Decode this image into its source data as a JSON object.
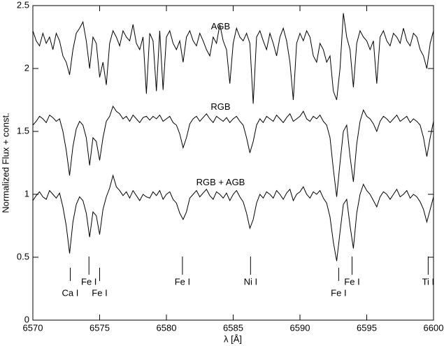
{
  "chart_data": {
    "type": "line",
    "xlabel": "λ [Å]",
    "ylabel": "Normalized Flux + const.",
    "x": [
      6570,
      6570.25,
      6570.5,
      6570.75,
      6571,
      6571.25,
      6571.5,
      6571.75,
      6572,
      6572.25,
      6572.5,
      6572.75,
      6573,
      6573.25,
      6573.5,
      6573.75,
      6574,
      6574.25,
      6574.5,
      6574.75,
      6575,
      6575.25,
      6575.5,
      6575.75,
      6576,
      6576.25,
      6576.5,
      6576.75,
      6577,
      6577.25,
      6577.5,
      6577.75,
      6578,
      6578.25,
      6578.5,
      6578.75,
      6579,
      6579.25,
      6579.5,
      6579.75,
      6580,
      6580.25,
      6580.5,
      6580.75,
      6581,
      6581.25,
      6581.5,
      6581.75,
      6582,
      6582.25,
      6582.5,
      6582.75,
      6583,
      6583.25,
      6583.5,
      6583.75,
      6584,
      6584.25,
      6584.5,
      6584.75,
      6585,
      6585.25,
      6585.5,
      6585.75,
      6586,
      6586.25,
      6586.5,
      6586.75,
      6587,
      6587.25,
      6587.5,
      6587.75,
      6588,
      6588.25,
      6588.5,
      6588.75,
      6589,
      6589.25,
      6589.5,
      6589.75,
      6590,
      6590.25,
      6590.5,
      6590.75,
      6591,
      6591.25,
      6591.5,
      6591.75,
      6592,
      6592.25,
      6592.5,
      6592.75,
      6593,
      6593.25,
      6593.5,
      6593.75,
      6594,
      6594.25,
      6594.5,
      6594.75,
      6595,
      6595.25,
      6595.5,
      6595.75,
      6596,
      6596.25,
      6596.5,
      6596.75,
      6597,
      6597.25,
      6597.5,
      6597.75,
      6598,
      6598.25,
      6598.5,
      6598.75,
      6599,
      6599.25,
      6599.5,
      6599.75,
      6600
    ],
    "series": [
      {
        "name": "AGB",
        "color": "#000000",
        "values": [
          2.3,
          2.22,
          2.18,
          2.28,
          2.2,
          2.25,
          2.15,
          2.28,
          2.22,
          2.1,
          2.05,
          1.95,
          2.15,
          2.28,
          2.32,
          2.37,
          2.22,
          2.0,
          2.25,
          2.2,
          1.93,
          2.05,
          1.87,
          2.2,
          2.3,
          2.25,
          2.18,
          2.3,
          2.25,
          2.22,
          2.35,
          2.2,
          2.15,
          2.25,
          1.8,
          2.28,
          2.22,
          1.82,
          2.3,
          1.83,
          2.25,
          2.3,
          2.2,
          2.15,
          2.22,
          2.05,
          2.25,
          2.3,
          2.22,
          2.18,
          2.28,
          2.22,
          2.15,
          2.1,
          2.25,
          2.2,
          2.35,
          2.22,
          2.15,
          1.88,
          2.2,
          2.32,
          2.25,
          2.22,
          2.28,
          2.2,
          1.72,
          2.25,
          2.3,
          2.22,
          2.15,
          2.28,
          2.2,
          2.1,
          2.25,
          2.32,
          2.22,
          2.05,
          1.75,
          2.2,
          2.28,
          2.22,
          2.3,
          2.25,
          2.1,
          2.05,
          2.2,
          2.15,
          2.05,
          2.1,
          1.82,
          1.75,
          2.0,
          2.44,
          2.25,
          2.15,
          1.85,
          2.2,
          2.3,
          2.25,
          2.22,
          2.15,
          2.22,
          1.88,
          2.25,
          2.3,
          2.22,
          2.18,
          2.28,
          2.25,
          2.2,
          2.32,
          2.22,
          2.18,
          2.28,
          2.25,
          2.15,
          2.1,
          2.0,
          2.2,
          2.3
        ]
      },
      {
        "name": "RGB",
        "color": "#000000",
        "values": [
          1.55,
          1.58,
          1.62,
          1.6,
          1.57,
          1.63,
          1.61,
          1.58,
          1.6,
          1.5,
          1.35,
          1.15,
          1.38,
          1.52,
          1.58,
          1.55,
          1.45,
          1.23,
          1.45,
          1.42,
          1.27,
          1.45,
          1.58,
          1.62,
          1.7,
          1.66,
          1.64,
          1.6,
          1.62,
          1.58,
          1.63,
          1.6,
          1.57,
          1.61,
          1.62,
          1.59,
          1.62,
          1.6,
          1.63,
          1.58,
          1.6,
          1.62,
          1.57,
          1.55,
          1.48,
          1.37,
          1.45,
          1.56,
          1.6,
          1.62,
          1.58,
          1.61,
          1.64,
          1.6,
          1.57,
          1.62,
          1.6,
          1.58,
          1.61,
          1.57,
          1.6,
          1.62,
          1.58,
          1.55,
          1.45,
          1.33,
          1.42,
          1.55,
          1.6,
          1.57,
          1.62,
          1.6,
          1.58,
          1.63,
          1.6,
          1.57,
          1.61,
          1.64,
          1.58,
          1.6,
          1.62,
          1.66,
          1.6,
          1.58,
          1.62,
          1.6,
          1.63,
          1.58,
          1.55,
          1.45,
          1.2,
          0.98,
          1.25,
          1.5,
          1.55,
          1.3,
          1.1,
          1.4,
          1.58,
          1.67,
          1.62,
          1.6,
          1.56,
          1.5,
          1.58,
          1.62,
          1.6,
          1.57,
          1.6,
          1.63,
          1.58,
          1.6,
          1.62,
          1.57,
          1.6,
          1.58,
          1.55,
          1.45,
          1.3,
          1.45,
          1.58
        ]
      },
      {
        "name": "RGB + AGB",
        "color": "#000000",
        "values": [
          0.95,
          0.99,
          1.02,
          0.98,
          0.96,
          1.03,
          1.0,
          0.97,
          1.01,
          0.9,
          0.75,
          0.53,
          0.78,
          0.92,
          0.98,
          0.95,
          0.85,
          0.66,
          0.86,
          0.83,
          0.68,
          0.88,
          0.98,
          1.05,
          1.15,
          1.06,
          1.03,
          0.99,
          1.02,
          0.97,
          1.03,
          0.99,
          0.95,
          1.0,
          0.98,
          0.97,
          1.02,
          0.99,
          1.03,
          0.96,
          1.0,
          1.02,
          0.96,
          0.93,
          0.85,
          0.8,
          0.86,
          0.97,
          1.0,
          1.03,
          0.98,
          1.01,
          1.04,
          0.99,
          0.96,
          1.02,
          1.0,
          0.97,
          1.01,
          0.95,
          1.0,
          1.03,
          0.98,
          0.94,
          0.85,
          0.73,
          0.8,
          0.93,
          1.0,
          0.97,
          1.02,
          1.0,
          0.97,
          1.03,
          1.0,
          0.96,
          1.01,
          1.04,
          0.95,
          1.0,
          1.02,
          1.06,
          1.0,
          0.97,
          1.02,
          1.0,
          1.03,
          0.97,
          0.93,
          0.82,
          0.62,
          0.47,
          0.7,
          0.92,
          0.96,
          0.75,
          0.57,
          0.85,
          1.0,
          1.08,
          1.03,
          1.0,
          0.95,
          0.9,
          0.98,
          1.02,
          1.0,
          0.96,
          1.0,
          1.04,
          0.98,
          1.0,
          1.03,
          0.97,
          1.0,
          0.98,
          0.94,
          0.88,
          0.78,
          0.88,
          0.98
        ]
      }
    ],
    "annotations": [
      {
        "x": 6572.8,
        "label": "Ca I"
      },
      {
        "x": 6574.2,
        "label": "Fe I"
      },
      {
        "x": 6575.0,
        "label": "Fe I"
      },
      {
        "x": 6581.2,
        "label": "Fe I"
      },
      {
        "x": 6586.3,
        "label": "Ni I"
      },
      {
        "x": 6592.9,
        "label": "Fe I"
      },
      {
        "x": 6593.9,
        "label": "Fe I"
      },
      {
        "x": 6599.6,
        "label": "Ti I"
      }
    ],
    "xlim": [
      6570,
      6600
    ],
    "xticks": [
      6570,
      6575,
      6580,
      6585,
      6590,
      6595,
      6600
    ],
    "ylim": [
      0,
      2.5
    ],
    "yticks": [
      0,
      0.5,
      1,
      1.5,
      2,
      2.5
    ]
  }
}
